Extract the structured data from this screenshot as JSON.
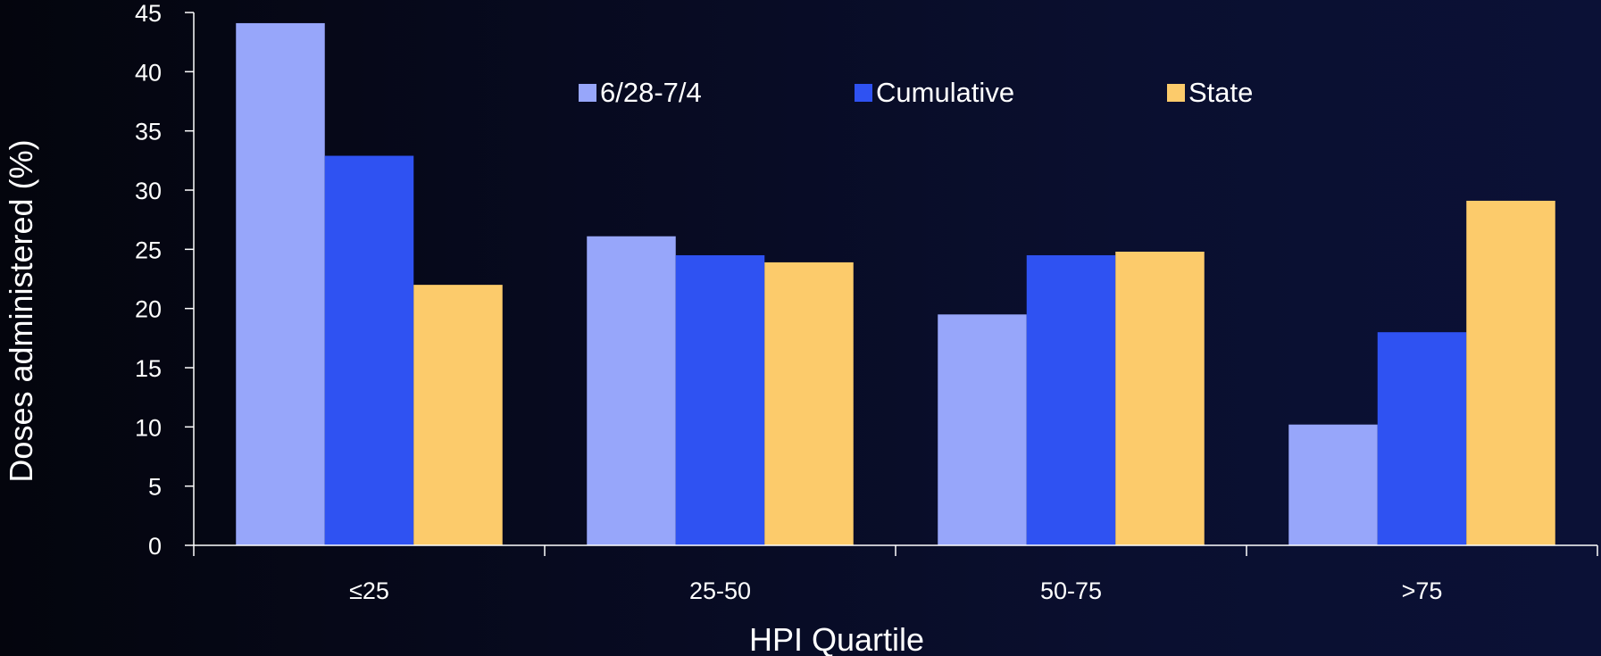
{
  "chart_data": {
    "type": "bar",
    "title": "",
    "xlabel": "HPI Quartile",
    "ylabel": "Doses administered (%)",
    "categories": [
      "≤25",
      "25-50",
      "50-75",
      ">75"
    ],
    "series": [
      {
        "name": "6/28-7/4",
        "color": "#97a6fa",
        "values": [
          44.1,
          26.1,
          19.5,
          10.2
        ]
      },
      {
        "name": "Cumulative",
        "color": "#2f52f2",
        "values": [
          32.9,
          24.5,
          24.5,
          18.0
        ]
      },
      {
        "name": "State",
        "color": "#fccb6b",
        "values": [
          22.0,
          23.9,
          24.8,
          29.1
        ]
      }
    ],
    "ylim": [
      0,
      45
    ],
    "yticks": [
      0,
      5,
      10,
      15,
      20,
      25,
      30,
      35,
      40,
      45
    ],
    "grid": false,
    "legend_position": "top-center",
    "axis_color": "#ffffff",
    "text_color": "#ffffff"
  }
}
